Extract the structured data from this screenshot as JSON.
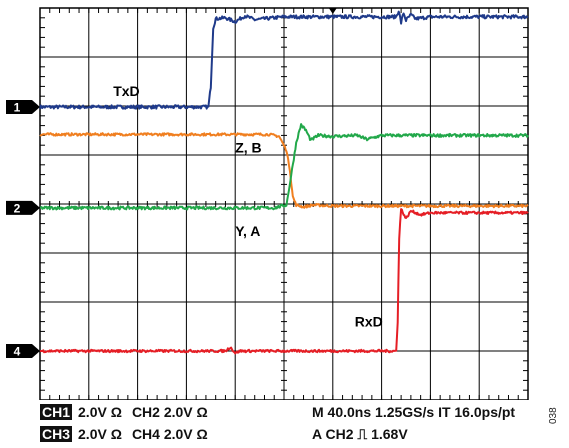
{
  "chart_data": {
    "type": "line",
    "title": "",
    "xlabel": "",
    "ylabel": "",
    "x_divisions": 10,
    "y_divisions": 8,
    "xlim": [
      0,
      10
    ],
    "ylim": [
      0,
      8
    ],
    "grid": true,
    "series": [
      {
        "name": "TxD",
        "color": "#1f3a8a",
        "points": [
          [
            0,
            5.98
          ],
          [
            3.45,
            5.98
          ],
          [
            3.5,
            6.4
          ],
          [
            3.55,
            7.6
          ],
          [
            3.6,
            7.78
          ],
          [
            3.8,
            7.8
          ],
          [
            4.0,
            7.72
          ],
          [
            4.2,
            7.84
          ],
          [
            4.4,
            7.76
          ],
          [
            5,
            7.82
          ],
          [
            7,
            7.82
          ],
          [
            7.3,
            7.82
          ],
          [
            7.35,
            7.95
          ],
          [
            7.4,
            7.7
          ],
          [
            7.45,
            7.9
          ],
          [
            7.5,
            7.75
          ],
          [
            7.6,
            7.86
          ],
          [
            7.7,
            7.78
          ],
          [
            8,
            7.82
          ],
          [
            10,
            7.82
          ]
        ],
        "noise": 0.035
      },
      {
        "name": "Z, B",
        "color": "#f07f20",
        "points": [
          [
            0,
            5.42
          ],
          [
            4.7,
            5.42
          ],
          [
            4.9,
            5.38
          ],
          [
            5.05,
            5.1
          ],
          [
            5.12,
            4.7
          ],
          [
            5.18,
            4.15
          ],
          [
            5.25,
            3.98
          ],
          [
            5.4,
            3.94
          ],
          [
            5.6,
            3.98
          ],
          [
            6,
            3.96
          ],
          [
            10,
            3.96
          ]
        ],
        "noise": 0.025
      },
      {
        "name": "Y, A",
        "color": "#22a84a",
        "points": [
          [
            0,
            3.92
          ],
          [
            4.8,
            3.92
          ],
          [
            5.05,
            3.98
          ],
          [
            5.15,
            4.6
          ],
          [
            5.25,
            5.25
          ],
          [
            5.35,
            5.62
          ],
          [
            5.45,
            5.5
          ],
          [
            5.55,
            5.3
          ],
          [
            5.7,
            5.4
          ],
          [
            6,
            5.38
          ],
          [
            6.5,
            5.4
          ],
          [
            6.7,
            5.32
          ],
          [
            7,
            5.4
          ],
          [
            10,
            5.4
          ]
        ],
        "noise": 0.03
      },
      {
        "name": "RxD",
        "color": "#e51e25",
        "points": [
          [
            0,
            1.0
          ],
          [
            3.8,
            1.0
          ],
          [
            3.9,
            1.08
          ],
          [
            4.0,
            0.96
          ],
          [
            4.1,
            1.0
          ],
          [
            7.3,
            1.0
          ],
          [
            7.33,
            1.6
          ],
          [
            7.36,
            3.3
          ],
          [
            7.4,
            3.9
          ],
          [
            7.5,
            3.7
          ],
          [
            7.6,
            3.86
          ],
          [
            7.8,
            3.78
          ],
          [
            8,
            3.82
          ],
          [
            10,
            3.82
          ]
        ],
        "noise": 0.025
      }
    ],
    "channel_markers": [
      {
        "label": "1",
        "y": 5.98
      },
      {
        "label": "2",
        "y": 3.92
      },
      {
        "label": "4",
        "y": 1.0
      }
    ],
    "trigger_marker_x": 6.0,
    "annotations": [
      {
        "text": "TxD",
        "x": 1.5,
        "y": 6.2
      },
      {
        "text": "Z, B",
        "x": 4.0,
        "y": 5.05
      },
      {
        "text": "Y, A",
        "x": 4.0,
        "y": 3.35
      },
      {
        "text": "RxD",
        "x": 6.45,
        "y": 1.5
      }
    ]
  },
  "status_bar": {
    "ch1_tag": "CH1",
    "ch1_scale": "2.0V  Ω",
    "ch2_scale": "CH2  2.0V  Ω",
    "ch3_tag": "CH3",
    "ch3_scale": "2.0V  Ω",
    "ch4_scale": "CH4  2.0V  Ω",
    "timebase": "M 40.0ns  1.25GS/s   IT 16.0ps/pt",
    "trigger": "A  CH2  ⎍  1.68V"
  },
  "figure_id": "038"
}
